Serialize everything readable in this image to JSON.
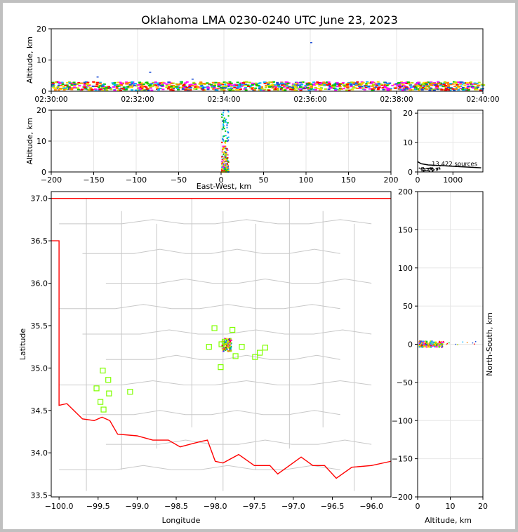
{
  "figure": {
    "title": "Oklahoma LMA 0230-0240 UTC June 23, 2023"
  },
  "colors": {
    "time_colors": [
      "#1f4fd6",
      "#00b4ff",
      "#00c800",
      "#b4e000",
      "#ffe000",
      "#ff8000",
      "#ff0000",
      "#ff00ff"
    ],
    "border": "#ff0000",
    "counties": "#c8c8c8",
    "stations": "#80ff00"
  },
  "chart_data": [
    {
      "id": "time_altitude",
      "type": "scatter",
      "title": "Oklahoma LMA 0230-0240 UTC June 23, 2023",
      "xlabel": "",
      "ylabel": "Altitude, km",
      "xlim": [
        "02:30:00",
        "02:40:00"
      ],
      "ylim": [
        0,
        20
      ],
      "xticks": [
        "02:30:00",
        "02:32:00",
        "02:34:00",
        "02:36:00",
        "02:38:00",
        "02:40:00"
      ],
      "yticks": [
        0,
        10,
        20
      ],
      "grid": true,
      "band_altitude_km": [
        0.3,
        3.0
      ],
      "outliers": [
        {
          "time": "02:36:00",
          "alt": 15.5
        },
        {
          "time": "02:31:03",
          "alt": 4.5
        },
        {
          "time": "02:32:16",
          "alt": 6.0
        },
        {
          "time": "02:33:15",
          "alt": 3.8
        }
      ]
    },
    {
      "id": "ew_altitude",
      "type": "scatter",
      "xlabel": "East-West, km",
      "ylabel": "Altitude, km",
      "xlim": [
        -200,
        200
      ],
      "ylim": [
        0,
        20
      ],
      "xticks": [
        -200,
        -150,
        -100,
        -50,
        0,
        50,
        100,
        150,
        200
      ],
      "yticks": [
        0,
        10,
        20
      ],
      "grid": true,
      "column_x_km": [
        0,
        8
      ],
      "column_top_km": 20
    },
    {
      "id": "altitude_histogram",
      "type": "line",
      "xlim": [
        0,
        1850
      ],
      "ylim": [
        0,
        21
      ],
      "xticks": [
        0,
        1000
      ],
      "yticks": [
        0,
        10,
        20
      ],
      "annotation": "13,422 sources",
      "points": [
        [
          0,
          3.5
        ],
        [
          100,
          2.8
        ],
        [
          300,
          2.4
        ],
        [
          600,
          2.2
        ],
        [
          900,
          2.0
        ],
        [
          1200,
          1.8
        ],
        [
          1500,
          1.6
        ],
        [
          1800,
          1.4
        ]
      ]
    },
    {
      "id": "plan_view",
      "type": "scatter",
      "xlabel": "Longitude",
      "ylabel": "Latitude",
      "xlim": [
        -100.1,
        -95.75
      ],
      "ylim": [
        33.48,
        37.08
      ],
      "xticks": [
        -100.0,
        -99.5,
        -99.0,
        -98.5,
        -98.0,
        -97.5,
        -97.0,
        -96.5,
        -96.0
      ],
      "yticks": [
        33.5,
        34.0,
        34.5,
        35.0,
        35.5,
        36.0,
        36.5,
        37.0
      ],
      "grid": false,
      "stations": [
        [
          -98.01,
          35.47
        ],
        [
          -97.78,
          35.45
        ],
        [
          -98.08,
          35.25
        ],
        [
          -97.66,
          35.25
        ],
        [
          -97.36,
          35.24
        ],
        [
          -97.74,
          35.14
        ],
        [
          -97.49,
          35.13
        ],
        [
          -97.43,
          35.18
        ],
        [
          -97.93,
          35.01
        ],
        [
          -99.44,
          34.97
        ],
        [
          -99.37,
          34.86
        ],
        [
          -99.52,
          34.76
        ],
        [
          -99.36,
          34.7
        ],
        [
          -99.09,
          34.72
        ],
        [
          -99.47,
          34.6
        ],
        [
          -99.43,
          34.51
        ],
        [
          -97.92,
          35.28
        ],
        [
          -97.88,
          35.31
        ]
      ],
      "sources_center": [
        -97.86,
        35.28
      ]
    },
    {
      "id": "altitude_ns",
      "type": "scatter",
      "xlabel": "Altitude, km",
      "ylabel": "North-South, km",
      "xlim": [
        0,
        20
      ],
      "ylim": [
        -200,
        200
      ],
      "xticks": [
        0,
        10,
        20
      ],
      "yticks": [
        -200,
        -150,
        -100,
        -50,
        0,
        50,
        100,
        150,
        200
      ],
      "grid": true,
      "band_altitude_km": [
        0.3,
        8.0
      ],
      "band_ns_km": [
        -4,
        4
      ]
    }
  ]
}
